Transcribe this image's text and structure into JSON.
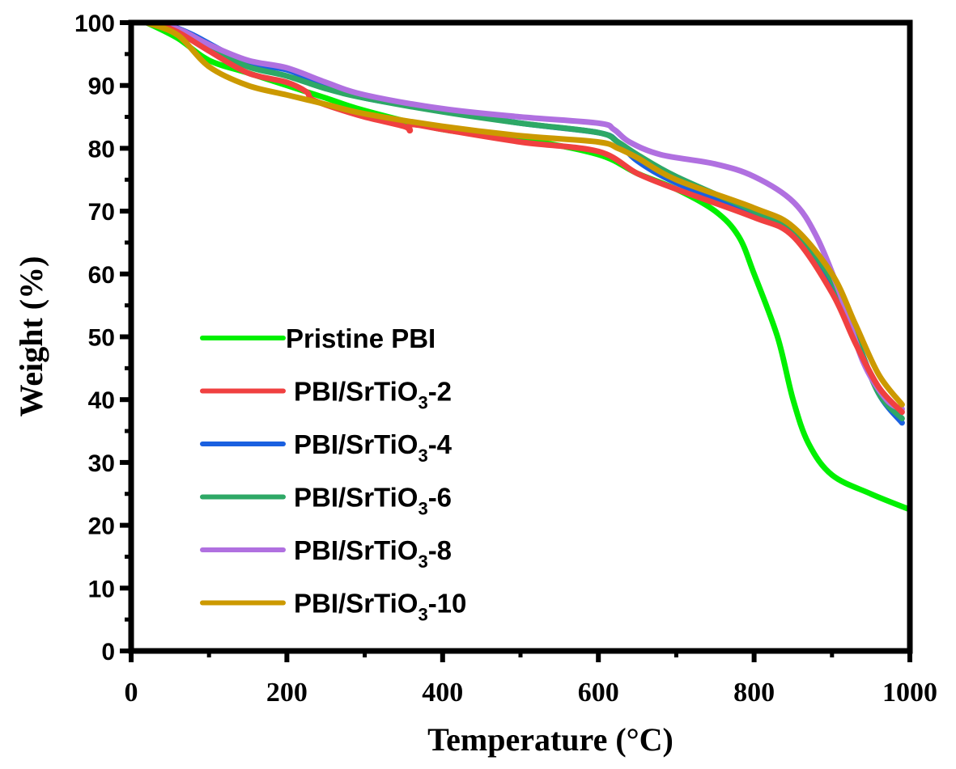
{
  "chart_data": {
    "type": "line",
    "title": "",
    "xlabel": "Temperature (°C)",
    "ylabel": "Weight (%)",
    "xlim": [
      0,
      1000
    ],
    "ylim": [
      0,
      100
    ],
    "xticks": [
      0,
      200,
      400,
      600,
      800,
      1000
    ],
    "xtick_labels": [
      "0",
      "200",
      "400",
      "600",
      "800",
      "1000"
    ],
    "yticks": [
      0,
      10,
      20,
      30,
      40,
      50,
      60,
      70,
      80,
      90,
      100
    ],
    "ytick_labels": [
      "0",
      "10",
      "20",
      "30",
      "40",
      "50",
      "60",
      "70",
      "80",
      "90",
      "100"
    ],
    "grid": false,
    "legend_position": "center-left",
    "series": [
      {
        "name": "Pristine PBI",
        "label_main": "Pristine PBI",
        "label_sub": "",
        "label_suffix": "",
        "color": "#00f000",
        "x": [
          20,
          60,
          100,
          150,
          200,
          250,
          300,
          400,
          500,
          600,
          650,
          700,
          750,
          780,
          800,
          830,
          850,
          870,
          900,
          950,
          1000
        ],
        "y": [
          100,
          97.5,
          94,
          92,
          90,
          88,
          86,
          83,
          81.5,
          79,
          76,
          73.5,
          70,
          66,
          60,
          50,
          40,
          33,
          28,
          25,
          22.5
        ]
      },
      {
        "name": "PBI/SrTiO3-2",
        "label_main": "PBI/SrTiO",
        "label_sub": "3",
        "label_suffix": "-2",
        "color": "#f04040",
        "x": [
          30,
          60,
          100,
          150,
          200,
          225,
          232,
          260,
          300,
          350,
          358,
          360,
          400,
          500,
          600,
          650,
          700,
          800,
          850,
          900,
          930,
          960,
          990
        ],
        "y": [
          100,
          98.5,
          95.5,
          92,
          90.5,
          89,
          87.8,
          86.5,
          85,
          83.5,
          82.8,
          83.8,
          83,
          81,
          79.5,
          76,
          73.5,
          69,
          66,
          57,
          49,
          42,
          38
        ]
      },
      {
        "name": "PBI/SrTiO3-4",
        "label_main": "PBI/SrTiO",
        "label_sub": "3",
        "label_suffix": "-4",
        "color": "#1a60e0",
        "x": [
          20,
          50,
          80,
          110,
          150,
          200,
          250,
          300,
          400,
          500,
          600,
          625,
          650,
          700,
          800,
          850,
          900,
          930,
          960,
          990
        ],
        "y": [
          100,
          99.5,
          98,
          96,
          93.5,
          92.5,
          90,
          88,
          86,
          84,
          82.5,
          81,
          78,
          74.5,
          69.5,
          66.5,
          58,
          50,
          41,
          36.3
        ]
      },
      {
        "name": "PBI/SrTiO3-6",
        "label_main": "PBI/SrTiO",
        "label_sub": "3",
        "label_suffix": "-6",
        "color": "#2ea866",
        "x": [
          20,
          60,
          100,
          150,
          200,
          250,
          300,
          400,
          500,
          600,
          625,
          650,
          700,
          800,
          850,
          900,
          930,
          960,
          990
        ],
        "y": [
          100,
          98.5,
          96,
          93,
          91.5,
          89.5,
          88,
          85.8,
          84,
          82.5,
          81,
          79,
          75.5,
          70,
          67,
          59,
          50,
          41,
          37
        ]
      },
      {
        "name": "PBI/SrTiO3-8",
        "label_main": "PBI/SrTiO",
        "label_sub": "3",
        "label_suffix": "-8",
        "color": "#b070e0",
        "x": [
          20,
          60,
          100,
          150,
          200,
          250,
          300,
          400,
          500,
          600,
          620,
          640,
          680,
          750,
          800,
          850,
          880,
          910,
          940,
          970,
          990
        ],
        "y": [
          100,
          99,
          96.5,
          94,
          92.8,
          90.5,
          88.5,
          86.3,
          85,
          84,
          83,
          81,
          79,
          77.5,
          75.5,
          71.5,
          66,
          57,
          46,
          40,
          38.5
        ]
      },
      {
        "name": "PBI/SrTiO3-10",
        "label_main": "PBI/SrTiO",
        "label_sub": "3",
        "label_suffix": "-10",
        "color": "#cc9900",
        "x": [
          20,
          60,
          100,
          150,
          200,
          250,
          300,
          400,
          500,
          600,
          625,
          650,
          700,
          800,
          850,
          900,
          930,
          960,
          990
        ],
        "y": [
          100,
          98,
          93,
          90,
          88.5,
          87,
          85.5,
          83.5,
          82,
          81,
          80,
          78.5,
          75,
          70.5,
          67.5,
          60,
          52,
          44,
          39.2
        ]
      }
    ]
  }
}
